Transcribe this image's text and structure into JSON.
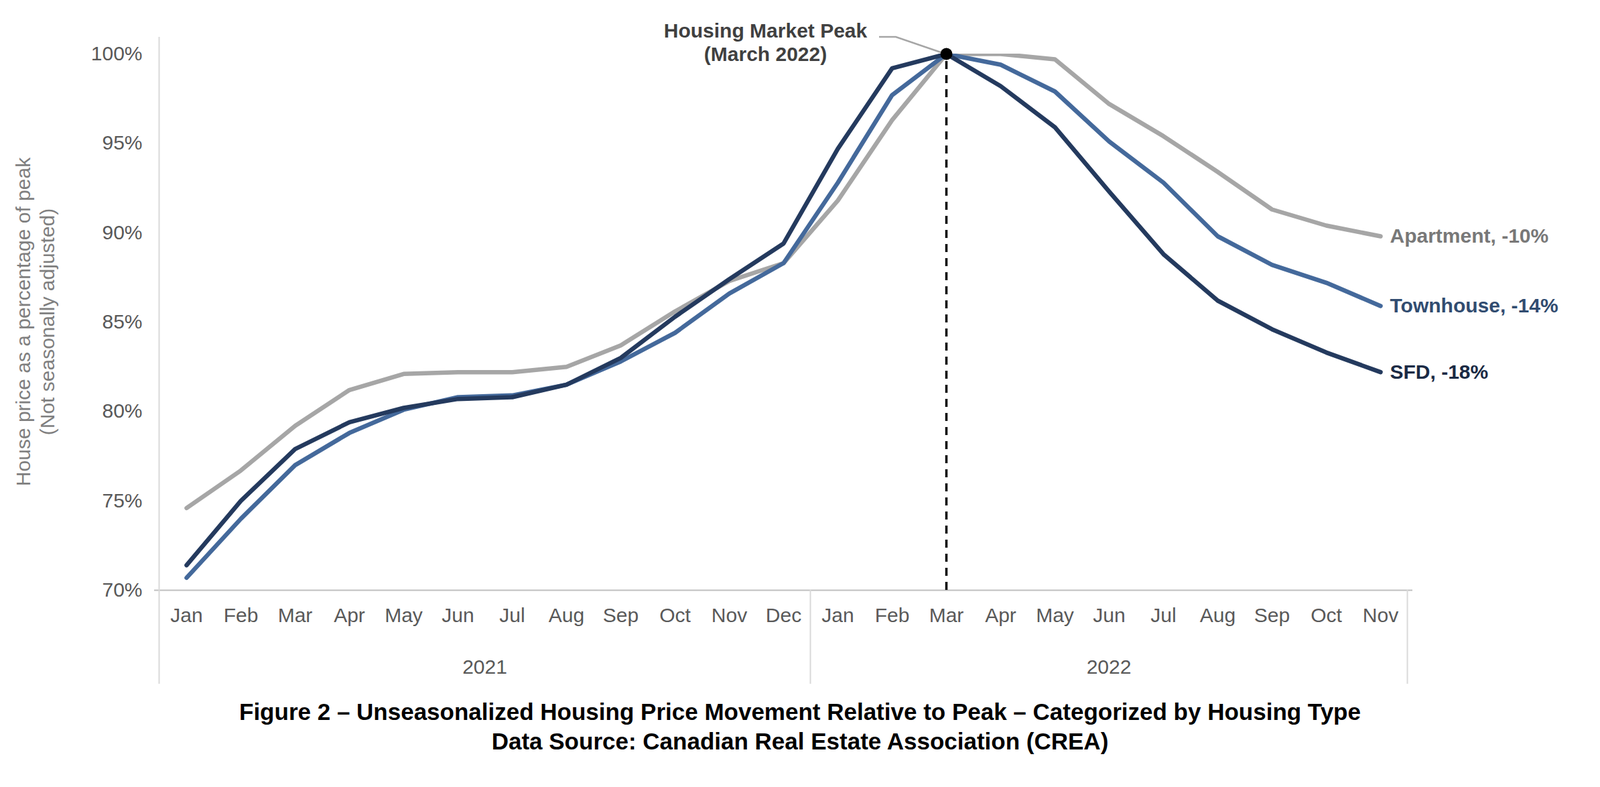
{
  "chart_data": {
    "type": "line",
    "title": "Figure 2 – Unseasonalized Housing Price Movement Relative to Peak – Categorized by Housing Type",
    "subtitle": "Data Source: Canadian Real Estate Association (CREA)",
    "y_label": [
      "House price as a percentage of peak",
      "(Not seasonally adjusted)"
    ],
    "categories": [
      "Jan",
      "Feb",
      "Mar",
      "Apr",
      "May",
      "Jun",
      "Jul",
      "Aug",
      "Sep",
      "Oct",
      "Nov",
      "Dec",
      "Jan",
      "Feb",
      "Mar",
      "Apr",
      "May",
      "Jun",
      "Jul",
      "Aug",
      "Sep",
      "Oct",
      "Nov"
    ],
    "category_groups": [
      {
        "label": "2021",
        "count": 12
      },
      {
        "label": "2022",
        "count": 11
      }
    ],
    "series": [
      {
        "name": "Apartment, -10%",
        "color": "#a6a6a6",
        "values": [
          74.6,
          76.7,
          79.2,
          81.2,
          82.1,
          82.2,
          82.2,
          82.5,
          83.7,
          85.6,
          87.3,
          88.3,
          91.8,
          96.3,
          100,
          100,
          99.7,
          97.2,
          95.4,
          93.4,
          91.3,
          90.4,
          89.8
        ]
      },
      {
        "name": "Townhouse, -14%",
        "color": "#44699b",
        "values": [
          70.7,
          74.0,
          77.0,
          78.8,
          80.1,
          80.8,
          80.9,
          81.5,
          82.8,
          84.4,
          86.6,
          88.3,
          92.8,
          97.7,
          100,
          99.4,
          97.9,
          95.1,
          92.8,
          89.8,
          88.2,
          87.2,
          85.9
        ]
      },
      {
        "name": "SFD, -18%",
        "color": "#243a5e",
        "values": [
          71.4,
          75.0,
          77.9,
          79.4,
          80.2,
          80.7,
          80.8,
          81.5,
          83.0,
          85.3,
          87.4,
          89.4,
          94.7,
          99.2,
          100,
          98.2,
          95.9,
          92.3,
          88.8,
          86.2,
          84.6,
          83.3,
          82.2
        ]
      }
    ],
    "annotation": {
      "text": [
        "Housing Market Peak",
        "(March 2022)"
      ],
      "category_index": 14,
      "value": 100
    },
    "ylim": [
      70,
      100
    ],
    "yticks": [
      {
        "value": 70,
        "label": "70%"
      },
      {
        "value": 75,
        "label": "75%"
      },
      {
        "value": 80,
        "label": "80%"
      },
      {
        "value": 85,
        "label": "85%"
      },
      {
        "value": 90,
        "label": "90%"
      },
      {
        "value": 95,
        "label": "95%"
      },
      {
        "value": 100,
        "label": "100%"
      }
    ],
    "grid": false
  }
}
